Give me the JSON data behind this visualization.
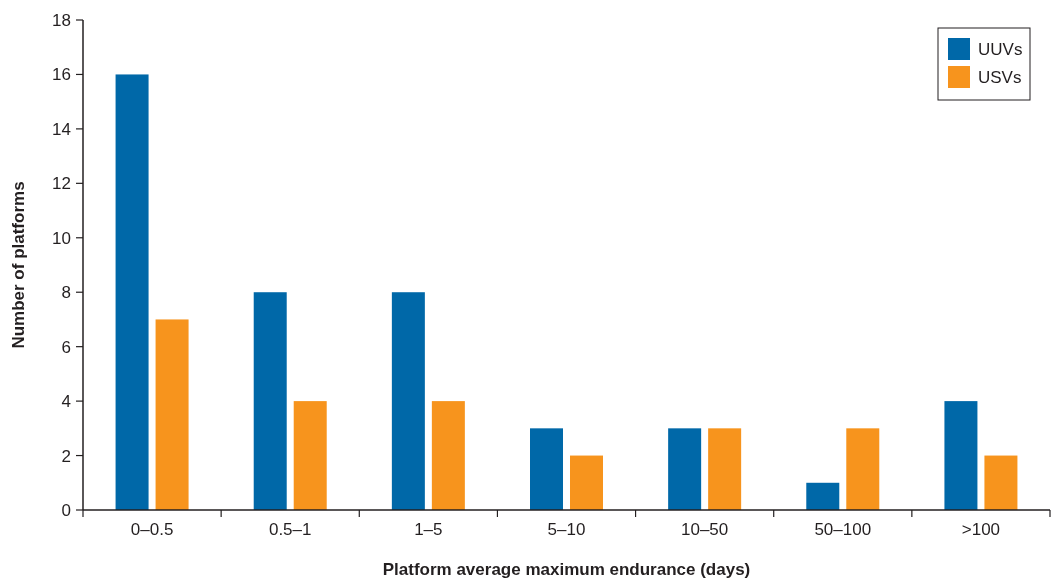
{
  "chart_data": {
    "type": "bar",
    "xlabel": "Platform average maximum endurance (days)",
    "ylabel": "Number of platforms",
    "categories": [
      "0–0.5",
      "0.5–1",
      "1–5",
      "5–10",
      "10–50",
      "50–100",
      ">100"
    ],
    "series": [
      {
        "name": "UUVs",
        "color": "#0068a8",
        "values": [
          16,
          8,
          8,
          3,
          3,
          1,
          4
        ]
      },
      {
        "name": "USVs",
        "color": "#f7941d",
        "values": [
          7,
          4,
          4,
          2,
          3,
          3,
          2
        ]
      }
    ],
    "ylim": [
      0,
      18
    ],
    "yticks": [
      0,
      2,
      4,
      6,
      8,
      10,
      12,
      14,
      16,
      18
    ],
    "grid": false,
    "legend": "top right"
  }
}
